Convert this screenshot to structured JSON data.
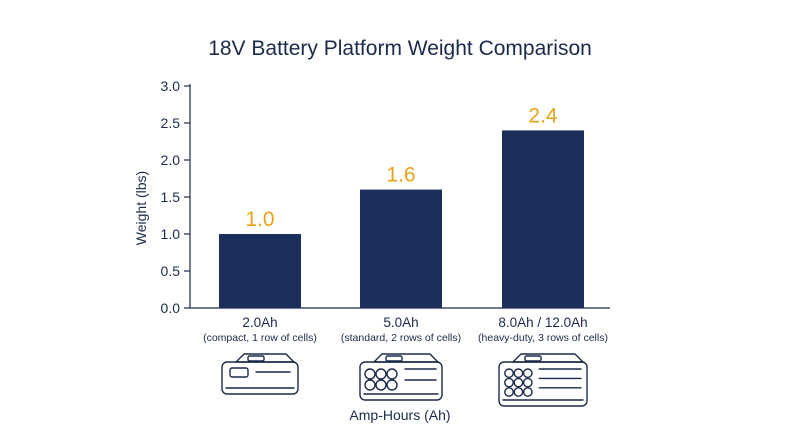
{
  "chart_data": {
    "type": "bar",
    "title": "18V Battery Platform Weight Comparison",
    "xlabel": "Amp-Hours (Ah)",
    "ylabel": "Weight (lbs)",
    "ylim": [
      0,
      3.0
    ],
    "yticks": [
      "0.0",
      "0.5",
      "1.0",
      "1.5",
      "2.0",
      "2.5",
      "3.0"
    ],
    "categories": [
      "2.0Ah",
      "5.0Ah",
      "8.0Ah / 12.0Ah"
    ],
    "category_notes": [
      "(compact, 1 row of cells)",
      "(standard, 2 rows of cells)",
      "(heavy-duty, 3 rows of cells)"
    ],
    "values": [
      1.0,
      1.6,
      2.4
    ],
    "data_labels": [
      "1.0",
      "1.6",
      "2.4"
    ],
    "grid": false,
    "bar_color": "#1b2f5a",
    "label_color": "#e8a317",
    "icons": [
      "battery-1-row-icon",
      "battery-2-rows-icon",
      "battery-3-rows-icon"
    ]
  }
}
